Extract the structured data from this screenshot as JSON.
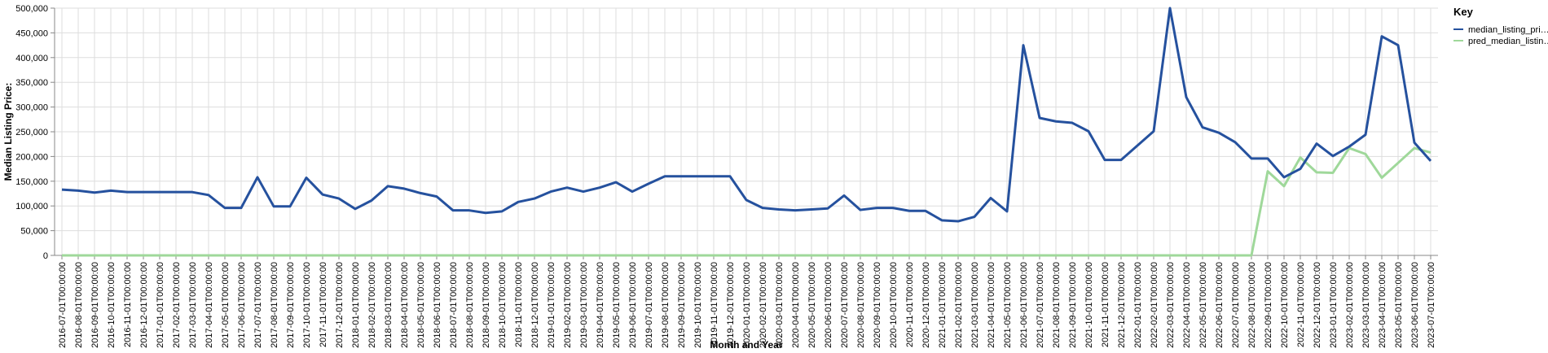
{
  "chart_data": {
    "type": "line",
    "x_label": "Month and Year",
    "y_label": "Median Listing Price:",
    "legend_title": "Key",
    "categories": [
      "2016-07-01T00:00:00",
      "2016-08-01T00:00:00",
      "2016-09-01T00:00:00",
      "2016-10-01T00:00:00",
      "2016-11-01T00:00:00",
      "2016-12-01T00:00:00",
      "2017-01-01T00:00:00",
      "2017-02-01T00:00:00",
      "2017-03-01T00:00:00",
      "2017-04-01T00:00:00",
      "2017-05-01T00:00:00",
      "2017-06-01T00:00:00",
      "2017-07-01T00:00:00",
      "2017-08-01T00:00:00",
      "2017-09-01T00:00:00",
      "2017-10-01T00:00:00",
      "2017-11-01T00:00:00",
      "2017-12-01T00:00:00",
      "2018-01-01T00:00:00",
      "2018-02-01T00:00:00",
      "2018-03-01T00:00:00",
      "2018-04-01T00:00:00",
      "2018-05-01T00:00:00",
      "2018-06-01T00:00:00",
      "2018-07-01T00:00:00",
      "2018-08-01T00:00:00",
      "2018-09-01T00:00:00",
      "2018-10-01T00:00:00",
      "2018-11-01T00:00:00",
      "2018-12-01T00:00:00",
      "2019-01-01T00:00:00",
      "2019-02-01T00:00:00",
      "2019-03-01T00:00:00",
      "2019-04-01T00:00:00",
      "2019-05-01T00:00:00",
      "2019-06-01T00:00:00",
      "2019-07-01T00:00:00",
      "2019-08-01T00:00:00",
      "2019-09-01T00:00:00",
      "2019-10-01T00:00:00",
      "2019-11-01T00:00:00",
      "2019-12-01T00:00:00",
      "2020-01-01T00:00:00",
      "2020-02-01T00:00:00",
      "2020-03-01T00:00:00",
      "2020-04-01T00:00:00",
      "2020-05-01T00:00:00",
      "2020-06-01T00:00:00",
      "2020-07-01T00:00:00",
      "2020-08-01T00:00:00",
      "2020-09-01T00:00:00",
      "2020-10-01T00:00:00",
      "2020-11-01T00:00:00",
      "2020-12-01T00:00:00",
      "2021-01-01T00:00:00",
      "2021-02-01T00:00:00",
      "2021-03-01T00:00:00",
      "2021-04-01T00:00:00",
      "2021-05-01T00:00:00",
      "2021-06-01T00:00:00",
      "2021-07-01T00:00:00",
      "2021-08-01T00:00:00",
      "2021-09-01T00:00:00",
      "2021-10-01T00:00:00",
      "2021-11-01T00:00:00",
      "2021-12-01T00:00:00",
      "2022-01-01T00:00:00",
      "2022-02-01T00:00:00",
      "2022-03-01T00:00:00",
      "2022-04-01T00:00:00",
      "2022-05-01T00:00:00",
      "2022-06-01T00:00:00",
      "2022-07-01T00:00:00",
      "2022-08-01T00:00:00",
      "2022-09-01T00:00:00",
      "2022-10-01T00:00:00",
      "2022-11-01T00:00:00",
      "2022-12-01T00:00:00",
      "2023-01-01T00:00:00",
      "2023-02-01T00:00:00",
      "2023-03-01T00:00:00",
      "2023-04-01T00:00:00",
      "2023-05-01T00:00:00",
      "2023-06-01T00:00:00",
      "2023-07-01T00:00:00"
    ],
    "series": [
      {
        "name": "median_listing_pri…",
        "color": "#25519e",
        "values": [
          133000,
          131000,
          127000,
          131000,
          128000,
          128000,
          128000,
          128000,
          128000,
          122000,
          96000,
          96000,
          158000,
          99000,
          99000,
          157000,
          123000,
          115000,
          94000,
          111000,
          140000,
          135000,
          126000,
          119000,
          91000,
          91000,
          86000,
          89000,
          108000,
          115000,
          129000,
          137000,
          129000,
          137000,
          148000,
          129000,
          145000,
          160000,
          160000,
          160000,
          160000,
          160000,
          112000,
          96000,
          93000,
          91000,
          93000,
          95000,
          121000,
          92000,
          96000,
          96000,
          90000,
          90000,
          71000,
          69000,
          78000,
          116000,
          89000,
          425000,
          278000,
          271000,
          268000,
          251000,
          193000,
          193000,
          222000,
          251000,
          500000,
          320000,
          259000,
          248000,
          229000,
          196000,
          196000,
          158000,
          175000,
          226000,
          201000,
          220000,
          244000,
          443000,
          425000,
          228000,
          191000
        ]
      },
      {
        "name": "pred_median_listin…",
        "color": "#9fd89a",
        "values": [
          0,
          0,
          0,
          0,
          0,
          0,
          0,
          0,
          0,
          0,
          0,
          0,
          0,
          0,
          0,
          0,
          0,
          0,
          0,
          0,
          0,
          0,
          0,
          0,
          0,
          0,
          0,
          0,
          0,
          0,
          0,
          0,
          0,
          0,
          0,
          0,
          0,
          0,
          0,
          0,
          0,
          0,
          0,
          0,
          0,
          0,
          0,
          0,
          0,
          0,
          0,
          0,
          0,
          0,
          0,
          0,
          0,
          0,
          0,
          0,
          0,
          0,
          0,
          0,
          0,
          0,
          0,
          0,
          0,
          0,
          0,
          0,
          0,
          0,
          170000,
          140000,
          198000,
          168000,
          167000,
          217000,
          205000,
          157000,
          187000,
          217000,
          208000
        ]
      }
    ],
    "ylim": [
      0,
      500000
    ],
    "yticks": [
      0,
      {
        "value": 50000,
        "label": "50,000"
      },
      {
        "value": 100000,
        "label": "100,000"
      },
      {
        "value": 150000,
        "label": "150,000"
      },
      {
        "value": 200000,
        "label": "200,000"
      },
      {
        "value": 250000,
        "label": "250,000"
      },
      {
        "value": 300000,
        "label": "300,000"
      },
      {
        "value": 350000,
        "label": "350,000"
      },
      {
        "value": 400000,
        "label": "400,000"
      },
      {
        "value": 450000,
        "label": "450,000"
      },
      {
        "value": 500000,
        "label": "500,000"
      }
    ],
    "grid": true,
    "legend_position": "right"
  }
}
